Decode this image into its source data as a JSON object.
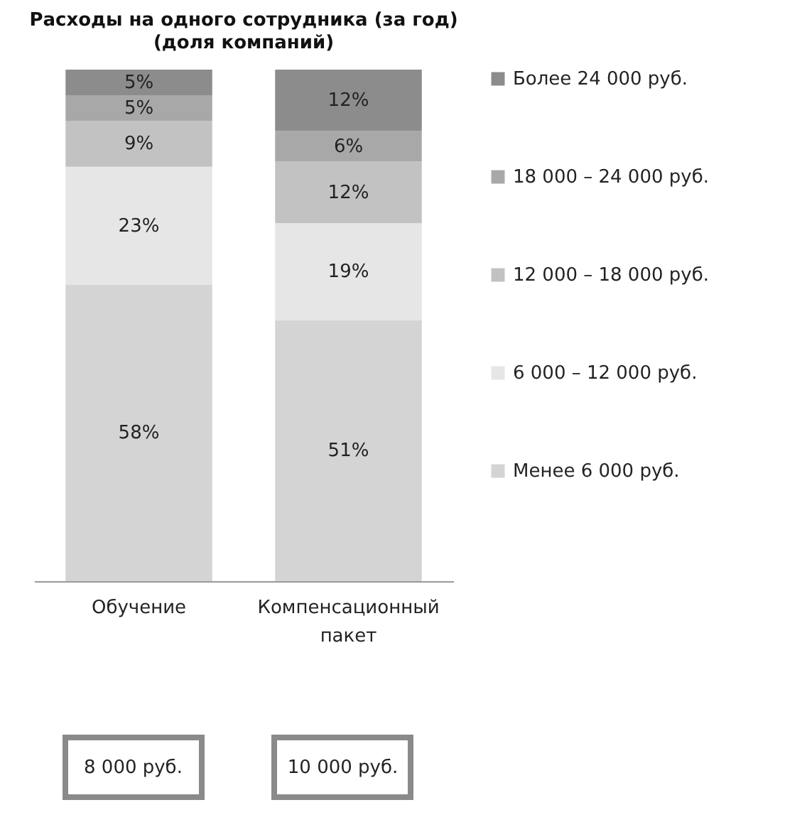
{
  "chart_data": {
    "type": "bar",
    "title": "Расходы на одного сотрудника (за год)",
    "subtitle": "(доля компаний)",
    "categories": [
      "Обучение",
      "Компенсационный пакет"
    ],
    "stacked": true,
    "legend": "right",
    "series": [
      {
        "name": "Менее 6 000 руб.",
        "color": "#d4d4d4",
        "values": [
          58,
          51
        ],
        "value_labels": [
          "58%",
          "51%"
        ]
      },
      {
        "name": "6 000 – 12 000 руб.",
        "color": "#e6e6e6",
        "values": [
          23,
          19
        ],
        "value_labels": [
          "23%",
          "19%"
        ]
      },
      {
        "name": "12 000 – 18 000 руб.",
        "color": "#c2c2c2",
        "values": [
          9,
          12
        ],
        "value_labels": [
          "9%",
          "12%"
        ]
      },
      {
        "name": "18 000 – 24 000 руб.",
        "color": "#a8a8a8",
        "values": [
          5,
          6
        ],
        "value_labels": [
          "5%",
          "6%"
        ]
      },
      {
        "name": "Более 24 000 руб.",
        "color": "#8c8c8c",
        "values": [
          5,
          12
        ],
        "value_labels": [
          "5%",
          "12%"
        ]
      }
    ],
    "annotations": [
      "8 000 руб.",
      "10 000 руб."
    ]
  }
}
